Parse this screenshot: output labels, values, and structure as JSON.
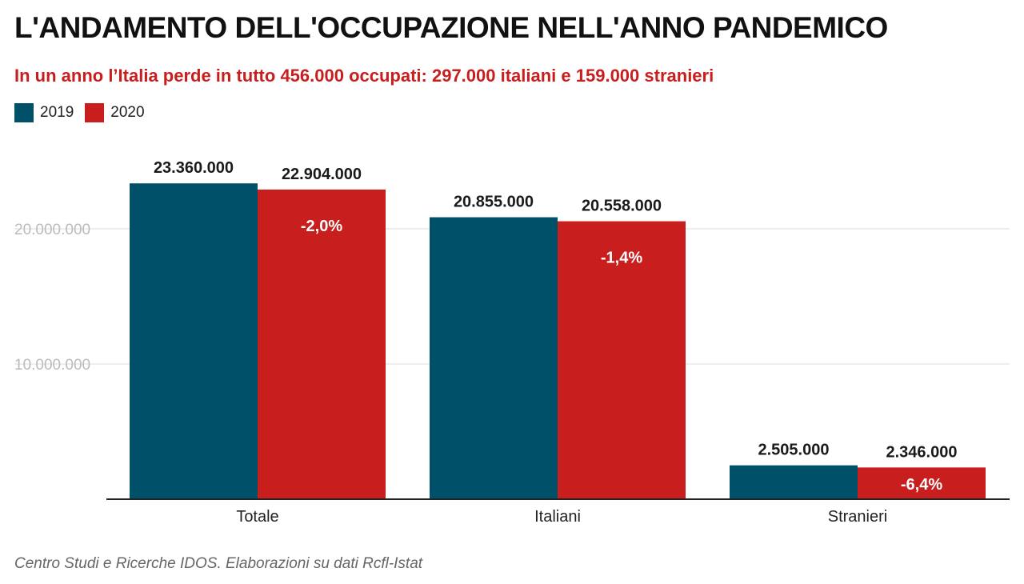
{
  "header": {
    "title": "L'ANDAMENTO DELL'OCCUPAZIONE NELL'ANNO PANDEMICO",
    "subtitle": "In un anno l’Italia perde in tutto 456.000 occupati: 297.000 italiani e 159.000 stranieri"
  },
  "colors": {
    "series_2019": "#00506A",
    "series_2020": "#C81E1E",
    "subtitle": "#C81E1E",
    "grid": "#dddddd",
    "axis_tick_label": "#bbbbbb"
  },
  "footer": {
    "source": "Centro Studi e Ricerche IDOS. Elaborazioni su dati Rcfl-Istat"
  },
  "chart_data": {
    "type": "bar",
    "categories": [
      "Totale",
      "Italiani",
      "Stranieri"
    ],
    "series": [
      {
        "name": "2019",
        "values": [
          23360000,
          20855000,
          2505000
        ],
        "value_labels": [
          "23.360.000",
          "20.855.000",
          "2.505.000"
        ]
      },
      {
        "name": "2020",
        "values": [
          22904000,
          20558000,
          2346000
        ],
        "value_labels": [
          "22.904.000",
          "20.558.000",
          "2.346.000"
        ],
        "change_labels": [
          "-2,0%",
          "-1,4%",
          "-6,4%"
        ]
      }
    ],
    "yticks": [
      10000000,
      20000000
    ],
    "ytick_labels": [
      "10.000.000",
      "20.000.000"
    ],
    "ylim": [
      0,
      25000000
    ],
    "grid": true,
    "legend_position": "top-left",
    "xlabel": "",
    "ylabel": ""
  }
}
